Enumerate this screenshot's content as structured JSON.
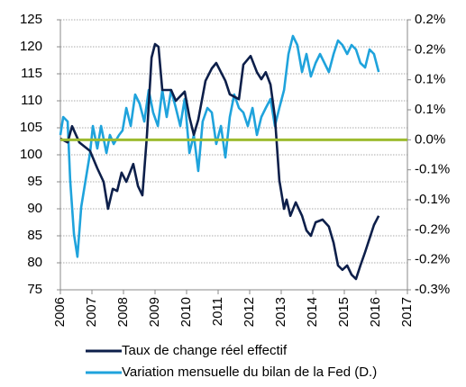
{
  "chart_data": {
    "type": "line",
    "xlim": [
      2006,
      2017
    ],
    "xticks": [
      2006,
      2007,
      2008,
      2009,
      2010,
      2011,
      2012,
      2013,
      2014,
      2015,
      2016,
      2017
    ],
    "ylim": [
      75,
      125
    ],
    "yticks": [
      75,
      80,
      85,
      90,
      95,
      100,
      105,
      110,
      115,
      120,
      125
    ],
    "y2lim": [
      -0.25,
      0.2
    ],
    "y2ticks": [
      {
        "value": -0.25,
        "label": "-0.3%"
      },
      {
        "value": -0.2,
        "label": "-0.2%"
      },
      {
        "value": -0.15,
        "label": "-0.2%"
      },
      {
        "value": -0.1,
        "label": "-0.1%"
      },
      {
        "value": -0.05,
        "label": "-0.1%"
      },
      {
        "value": 0,
        "label": "0.0%"
      },
      {
        "value": 0.05,
        "label": "0.1%"
      },
      {
        "value": 0.1,
        "label": "0.1%"
      },
      {
        "value": 0.15,
        "label": "0.2%"
      },
      {
        "value": 0.2,
        "label": "0.2%"
      }
    ],
    "grid": true,
    "legend": "bottom",
    "reference_line": {
      "value": 0,
      "axis": "y2",
      "color": "#9dbb2f"
    },
    "series": [
      {
        "name": "Taux de change réel effectif",
        "color": "#0d1f4a",
        "axis": "y",
        "x": [
          2006.0,
          2006.23,
          2006.37,
          2006.6,
          2006.94,
          2007.17,
          2007.37,
          2007.51,
          2007.66,
          2007.8,
          2007.94,
          2008.09,
          2008.31,
          2008.46,
          2008.6,
          2008.74,
          2008.89,
          2009.0,
          2009.11,
          2009.23,
          2009.51,
          2009.66,
          2009.94,
          2010.09,
          2010.23,
          2010.37,
          2010.6,
          2010.8,
          2010.94,
          2011.23,
          2011.37,
          2011.66,
          2011.8,
          2012.03,
          2012.23,
          2012.37,
          2012.51,
          2012.66,
          2012.8,
          2012.94,
          2013.09,
          2013.17,
          2013.29,
          2013.46,
          2013.66,
          2013.8,
          2013.94,
          2014.09,
          2014.31,
          2014.51,
          2014.66,
          2014.8,
          2014.94,
          2015.09,
          2015.23,
          2015.37,
          2015.51,
          2015.66,
          2015.8,
          2015.94,
          2016.09
        ],
        "values": [
          103,
          102.3,
          105.3,
          102.3,
          100.7,
          97.5,
          95,
          90,
          93.7,
          93.3,
          96.7,
          95,
          98.3,
          94.2,
          92.5,
          103.3,
          118,
          120.5,
          120,
          112,
          112,
          110,
          111.7,
          107,
          103.7,
          106.5,
          113.7,
          116,
          117,
          113.7,
          111.2,
          110.3,
          116.7,
          118.3,
          115.3,
          114,
          115.3,
          113,
          107,
          95.3,
          90,
          91.7,
          88.7,
          91.2,
          88.7,
          86,
          85,
          87.5,
          88,
          86.7,
          83.7,
          79.5,
          78.7,
          79.5,
          77.8,
          77,
          79.5,
          82,
          84.5,
          87,
          88.7
        ]
      },
      {
        "name": "Variation mensuelle du bilan de la Fed (D.)",
        "color": "#1fa3dc",
        "axis": "y2",
        "x": [
          2006.0,
          2006.09,
          2006.23,
          2006.31,
          2006.43,
          2006.54,
          2006.66,
          2006.8,
          2006.94,
          2007.03,
          2007.17,
          2007.29,
          2007.46,
          2007.57,
          2007.69,
          2007.86,
          2007.97,
          2008.09,
          2008.23,
          2008.37,
          2008.51,
          2008.66,
          2008.8,
          2008.94,
          2009.09,
          2009.23,
          2009.37,
          2009.51,
          2009.66,
          2009.8,
          2009.94,
          2010.09,
          2010.23,
          2010.37,
          2010.51,
          2010.66,
          2010.8,
          2010.94,
          2011.09,
          2011.23,
          2011.37,
          2011.51,
          2011.66,
          2011.8,
          2011.94,
          2012.09,
          2012.23,
          2012.37,
          2012.51,
          2012.66,
          2012.8,
          2012.94,
          2013.09,
          2013.23,
          2013.37,
          2013.51,
          2013.66,
          2013.8,
          2013.94,
          2014.09,
          2014.23,
          2014.37,
          2014.51,
          2014.66,
          2014.8,
          2014.94,
          2015.09,
          2015.23,
          2015.37,
          2015.51,
          2015.66,
          2015.8,
          2015.94,
          2016.09
        ],
        "values": [
          0.008,
          0.038,
          0.0305,
          -0.067,
          -0.157,
          -0.195,
          -0.112,
          -0.067,
          -0.022,
          0.023,
          -0.0145,
          0.023,
          -0.022,
          0.008,
          -0.007,
          0.008,
          0.0155,
          0.053,
          0.023,
          0.0755,
          0.0605,
          0.0305,
          0.083,
          0.0455,
          0.023,
          0.083,
          0.038,
          0.083,
          0.053,
          0.023,
          0.068,
          -0.022,
          0.008,
          -0.052,
          0.0305,
          0.053,
          0.0455,
          -0.007,
          0.023,
          -0.0295,
          0.038,
          0.0755,
          0.053,
          0.0455,
          0.023,
          0.053,
          0.008,
          0.038,
          0.053,
          0.068,
          0.023,
          0.053,
          0.083,
          0.143,
          0.173,
          0.158,
          0.113,
          0.143,
          0.1055,
          0.128,
          0.143,
          0.128,
          0.113,
          0.143,
          0.1655,
          0.158,
          0.143,
          0.158,
          0.1505,
          0.128,
          0.1205,
          0.1505,
          0.143,
          0.113
        ]
      }
    ]
  }
}
